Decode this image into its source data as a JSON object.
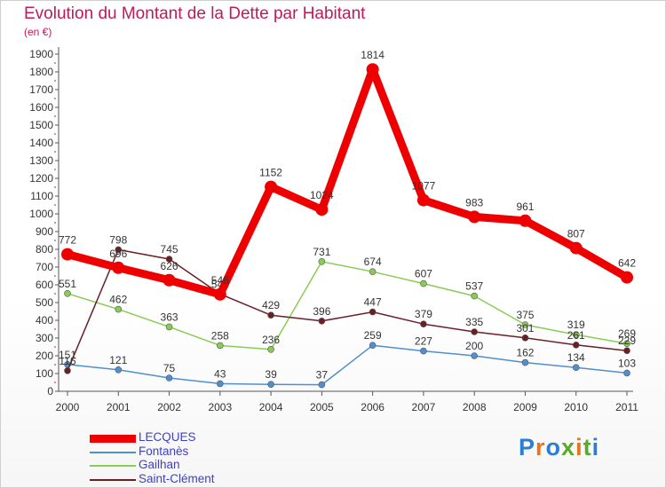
{
  "title": "Evolution du Montant de la Dette par Habitant",
  "subtitle": "(en €)",
  "logo_text": "Proxiti",
  "chart_data": {
    "type": "line",
    "x": [
      2000,
      2001,
      2002,
      2003,
      2004,
      2005,
      2006,
      2007,
      2008,
      2009,
      2010,
      2011
    ],
    "ylim": [
      0,
      1900
    ],
    "yticks": [
      0,
      100,
      200,
      300,
      400,
      500,
      600,
      700,
      800,
      900,
      1000,
      1100,
      1200,
      1300,
      1400,
      1500,
      1600,
      1700,
      1800,
      1900
    ],
    "grid": false,
    "legend": "bottom-left",
    "series": [
      {
        "name": "LECQUES",
        "color": "#ee0000",
        "emphasis": true,
        "values": [
          772,
          696,
          626,
          546,
          1152,
          1024,
          1814,
          1077,
          983,
          961,
          807,
          642
        ]
      },
      {
        "name": "Fontanès",
        "color": "#4f8fd0",
        "emphasis": false,
        "values": [
          151,
          121,
          75,
          43,
          39,
          37,
          259,
          227,
          200,
          162,
          134,
          103
        ]
      },
      {
        "name": "Gailhan",
        "color": "#88cc55",
        "emphasis": false,
        "values": [
          551,
          462,
          363,
          258,
          236,
          731,
          674,
          607,
          537,
          375,
          319,
          269
        ]
      },
      {
        "name": "Saint-Clément",
        "color": "#6a1f24",
        "emphasis": false,
        "values": [
          116,
          798,
          745,
          548,
          429,
          396,
          447,
          379,
          335,
          301,
          261,
          229
        ]
      }
    ]
  }
}
